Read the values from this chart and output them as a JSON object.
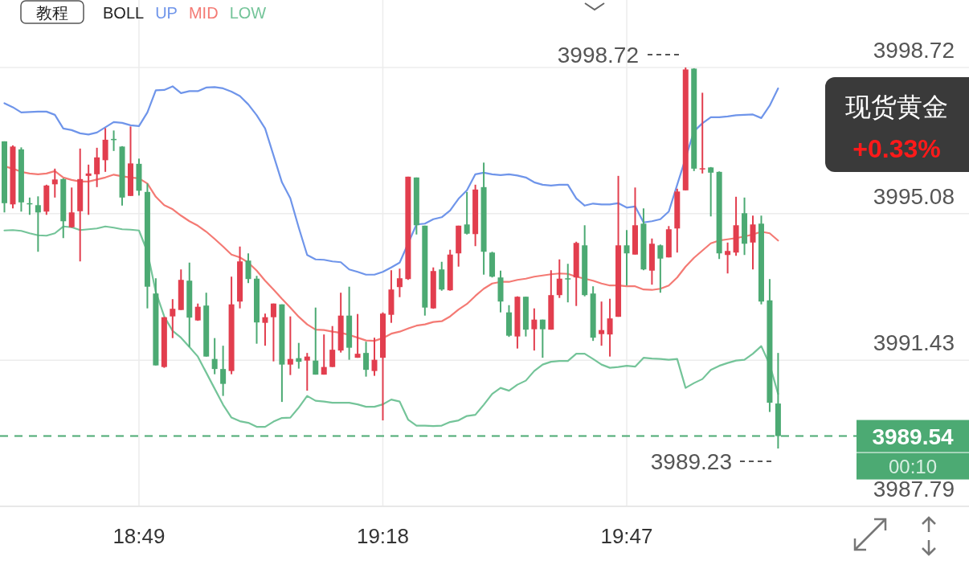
{
  "chart_data": {
    "type": "candlestick",
    "legend_title": "BOLL",
    "legend": "top",
    "grid": true,
    "categories": [
      null,
      null,
      null,
      null,
      null,
      null,
      null,
      null,
      null,
      null,
      null,
      null,
      null,
      null,
      null,
      null,
      "18:49",
      null,
      null,
      null,
      null,
      null,
      null,
      null,
      null,
      null,
      null,
      null,
      null,
      null,
      null,
      null,
      null,
      null,
      null,
      null,
      null,
      null,
      null,
      null,
      null,
      null,
      null,
      null,
      null,
      "19:18",
      null,
      null,
      null,
      null,
      null,
      null,
      null,
      null,
      null,
      null,
      null,
      null,
      null,
      null,
      null,
      null,
      null,
      null,
      null,
      null,
      null,
      null,
      null,
      null,
      null,
      null,
      null,
      null,
      "19:47",
      null,
      null,
      null,
      null,
      null,
      null,
      null,
      null,
      null,
      null,
      null,
      null,
      null,
      null,
      null,
      null,
      null,
      null
    ],
    "ylim": [
      3987.79,
      4000.4
    ],
    "yticks": [
      3998.72,
      3995.08,
      3991.43,
      3987.79
    ],
    "ohlc": [
      [
        3996.88,
        3996.88,
        3995.11,
        3995.34
      ],
      [
        3995.31,
        3996.78,
        3995.21,
        3996.75
      ],
      [
        3996.68,
        3996.73,
        3995.13,
        3995.36
      ],
      [
        3995.34,
        3995.48,
        3995.05,
        3995.31
      ],
      [
        3995.29,
        3995.51,
        3994.13,
        3995.11
      ],
      [
        3995.13,
        3995.8,
        3995.05,
        3995.78
      ],
      [
        3995.81,
        3996.2,
        3995.48,
        3995.93
      ],
      [
        3995.94,
        3995.96,
        3994.47,
        3994.89
      ],
      [
        3994.74,
        3995.73,
        3994.73,
        3995.11
      ],
      [
        3995.14,
        3996.7,
        3993.89,
        3995.94
      ],
      [
        3996.02,
        3996.3,
        3995.05,
        3996.08
      ],
      [
        3996.06,
        3996.72,
        3995.74,
        3996.48
      ],
      [
        3996.41,
        3997.21,
        3996.12,
        3996.92
      ],
      [
        3996.94,
        3997.15,
        3996.64,
        3996.92
      ],
      [
        3996.75,
        3996.76,
        3995.28,
        3995.48
      ],
      [
        3995.52,
        3997.25,
        3995.52,
        3996.33
      ],
      [
        3996.32,
        3996.45,
        3995.53,
        3995.65
      ],
      [
        3995.62,
        3995.83,
        3992.72,
        3993.26
      ],
      [
        3993.09,
        3993.47,
        3991.3,
        3991.3
      ],
      [
        3991.26,
        3992.5,
        3991.24,
        3992.5
      ],
      [
        3992.52,
        3992.95,
        3991.98,
        3992.71
      ],
      [
        3992.68,
        3993.69,
        3992.68,
        3993.43
      ],
      [
        3993.41,
        3993.86,
        3991.76,
        3992.49
      ],
      [
        3992.42,
        3992.84,
        3992.41,
        3992.76
      ],
      [
        3992.79,
        3993.11,
        3991.52,
        3991.52
      ],
      [
        3991.46,
        3991.98,
        3991.08,
        3991.21
      ],
      [
        3991.21,
        3991.79,
        3990.54,
        3990.84
      ],
      [
        3991.16,
        3993.51,
        3991.08,
        3992.82
      ],
      [
        3992.89,
        3994.26,
        3992.72,
        3993.89
      ],
      [
        3993.91,
        3994.09,
        3993.35,
        3993.45
      ],
      [
        3993.46,
        3993.53,
        3991.84,
        3992.37
      ],
      [
        3992.36,
        3992.59,
        3991.79,
        3992.5
      ],
      [
        3992.5,
        3992.84,
        3991.4,
        3992.84
      ],
      [
        3992.82,
        3992.82,
        3990.39,
        3991.32
      ],
      [
        3991.32,
        3992.52,
        3991.06,
        3991.46
      ],
      [
        3991.48,
        3991.86,
        3991.22,
        3991.39
      ],
      [
        3991.42,
        3991.61,
        3990.67,
        3991.52
      ],
      [
        3991.42,
        3992.74,
        3991.07,
        3991.07
      ],
      [
        3991.07,
        3992.07,
        3991.07,
        3991.26
      ],
      [
        3991.26,
        3992.28,
        3991.26,
        3991.69
      ],
      [
        3991.67,
        3993.11,
        3991.62,
        3992.54
      ],
      [
        3992.54,
        3993.26,
        3991.44,
        3991.74
      ],
      [
        3991.49,
        3992.58,
        3991.49,
        3991.59
      ],
      [
        3991.61,
        3991.89,
        3991.02,
        3991.19
      ],
      [
        3991.16,
        3991.99,
        3991.04,
        3991.44
      ],
      [
        3991.49,
        3992.62,
        3989.93,
        3992.59
      ],
      [
        3992.56,
        3993.67,
        3992.36,
        3993.19
      ],
      [
        3993.25,
        3993.71,
        3993.0,
        3993.47
      ],
      [
        3993.45,
        3996.0,
        3993.43,
        3996.0
      ],
      [
        3995.98,
        3995.98,
        3994.56,
        3994.79
      ],
      [
        3994.78,
        3994.78,
        3992.54,
        3992.74
      ],
      [
        3992.72,
        3993.74,
        3992.71,
        3993.65
      ],
      [
        3993.69,
        3993.88,
        3993.16,
        3993.19
      ],
      [
        3993.17,
        3994.18,
        3993.16,
        3994.06
      ],
      [
        3994.09,
        3994.78,
        3993.76,
        3994.78
      ],
      [
        3994.81,
        3995.62,
        3994.56,
        3994.58
      ],
      [
        3994.57,
        3995.8,
        3994.27,
        3995.68
      ],
      [
        3995.74,
        3996.35,
        3993.56,
        3994.13
      ],
      [
        3994.11,
        3994.13,
        3993.49,
        3993.51
      ],
      [
        3993.49,
        3993.66,
        3992.62,
        3992.89
      ],
      [
        3992.62,
        3992.8,
        3992.01,
        3992.04
      ],
      [
        3992.02,
        3993.02,
        3991.72,
        3993.01
      ],
      [
        3993.01,
        3993.01,
        3992.02,
        3992.19
      ],
      [
        3992.2,
        3992.72,
        3991.67,
        3992.44
      ],
      [
        3992.44,
        3992.44,
        3991.49,
        3992.2
      ],
      [
        3992.19,
        3993.67,
        3992.19,
        3993.05
      ],
      [
        3993.05,
        3993.94,
        3992.98,
        3993.46
      ],
      [
        3993.47,
        3993.83,
        3992.87,
        3993.45
      ],
      [
        3993.49,
        3994.38,
        3992.78,
        3994.35
      ],
      [
        3994.29,
        3994.79,
        3993.02,
        3993.05
      ],
      [
        3993.09,
        3993.27,
        3991.91,
        3991.99
      ],
      [
        3992.08,
        3992.89,
        3991.79,
        3992.18
      ],
      [
        3992.07,
        3992.96,
        3991.52,
        3992.47
      ],
      [
        3992.51,
        3996.02,
        3992.51,
        3994.29
      ],
      [
        3994.29,
        3994.67,
        3993.29,
        3994.09
      ],
      [
        3994.06,
        3995.73,
        3994.06,
        3994.79
      ],
      [
        3994.83,
        3995.21,
        3993.67,
        3993.69
      ],
      [
        3993.66,
        3994.46,
        3993.31,
        3994.33
      ],
      [
        3994.29,
        3994.31,
        3993.11,
        3993.96
      ],
      [
        3993.99,
        3994.77,
        3993.99,
        3994.69
      ],
      [
        3994.71,
        3995.7,
        3994.11,
        3995.63
      ],
      [
        3995.66,
        3998.72,
        3995.66,
        3998.67
      ],
      [
        3998.69,
        3998.7,
        3996.14,
        3996.2
      ],
      [
        3996.18,
        3998.09,
        3996.08,
        3996.21
      ],
      [
        3996.23,
        3996.24,
        3995.01,
        3996.1
      ],
      [
        3996.12,
        3996.13,
        3993.95,
        3994.09
      ],
      [
        3994.05,
        3994.36,
        3993.59,
        3994.15
      ],
      [
        3994.11,
        3995.5,
        3994.03,
        3994.79
      ],
      [
        3995.09,
        3995.48,
        3994.05,
        3994.33
      ],
      [
        3994.36,
        3995.03,
        3993.69,
        3994.81
      ],
      [
        3994.83,
        3995.03,
        3992.82,
        3992.89
      ],
      [
        3992.92,
        3993.45,
        3990.14,
        3990.37
      ],
      [
        3990.35,
        3991.61,
        3989.23,
        3989.54
      ]
    ],
    "colors": [
      "#4caa73",
      "#e23e4e",
      "#4caa73",
      "#4caa73",
      "#4caa73",
      "#e23e4e",
      "#e23e4e",
      "#4caa73",
      "#e23e4e",
      "#e23e4e",
      "#e23e4e",
      "#e23e4e",
      "#e23e4e",
      "#4caa73",
      "#4caa73",
      "#e23e4e",
      "#4caa73",
      "#4caa73",
      "#4caa73",
      "#e23e4e",
      "#e23e4e",
      "#e23e4e",
      "#4caa73",
      "#e23e4e",
      "#4caa73",
      "#4caa73",
      "#4caa73",
      "#e23e4e",
      "#e23e4e",
      "#4caa73",
      "#4caa73",
      "#e23e4e",
      "#e23e4e",
      "#4caa73",
      "#e23e4e",
      "#4caa73",
      "#e23e4e",
      "#4caa73",
      "#e23e4e",
      "#e23e4e",
      "#e23e4e",
      "#4caa73",
      "#e23e4e",
      "#4caa73",
      "#e23e4e",
      "#e23e4e",
      "#e23e4e",
      "#e23e4e",
      "#e23e4e",
      "#4caa73",
      "#4caa73",
      "#e23e4e",
      "#4caa73",
      "#e23e4e",
      "#e23e4e",
      "#4caa73",
      "#e23e4e",
      "#4caa73",
      "#4caa73",
      "#4caa73",
      "#4caa73",
      "#e23e4e",
      "#4caa73",
      "#e23e4e",
      "#4caa73",
      "#e23e4e",
      "#e23e4e",
      "#4caa73",
      "#e23e4e",
      "#4caa73",
      "#4caa73",
      "#e23e4e",
      "#e23e4e",
      "#e23e4e",
      "#4caa73",
      "#e23e4e",
      "#4caa73",
      "#e23e4e",
      "#4caa73",
      "#e23e4e",
      "#e23e4e",
      "#e23e4e",
      "#4caa73",
      "#e23e4e",
      "#4caa73",
      "#4caa73",
      "#e23e4e",
      "#e23e4e",
      "#4caa73",
      "#e23e4e",
      "#4caa73",
      "#4caa73",
      "#4caa73"
    ],
    "series": [
      {
        "name": "UP",
        "type": "line",
        "color": "#6f95ea",
        "values": [
          3997.83,
          3997.73,
          3997.6,
          3997.61,
          3997.62,
          3997.62,
          3997.54,
          3997.2,
          3997.16,
          3997.08,
          3997.05,
          3997.1,
          3997.23,
          3997.36,
          3997.34,
          3997.28,
          3997.26,
          3997.6,
          3998.15,
          3998.16,
          3998.25,
          3998.08,
          3998.13,
          3998.13,
          3998.22,
          3998.23,
          3998.2,
          3998.12,
          3998.01,
          3997.8,
          3997.53,
          3997.2,
          3996.53,
          3995.86,
          3995.46,
          3994.73,
          3994.05,
          3993.94,
          3993.93,
          3993.89,
          3993.87,
          3993.69,
          3993.63,
          3993.56,
          3993.56,
          3993.63,
          3993.74,
          3993.86,
          null,
          3994.81,
          3994.83,
          3994.94,
          3994.99,
          3995.16,
          3995.45,
          3995.66,
          3996.06,
          3996.1,
          3996.06,
          3996.04,
          3996.06,
          3996.03,
          3995.98,
          3995.86,
          3995.8,
          3995.78,
          3995.8,
          3995.8,
          3995.46,
          3995.28,
          3995.33,
          3995.31,
          3995.31,
          3995.34,
          3995.23,
          3995.26,
          3994.86,
          3994.89,
          3994.94,
          3995.13,
          null,
          null,
          3997.13,
          3997.33,
          3997.48,
          3997.48,
          3997.5,
          3997.53,
          3997.54,
          3997.55,
          3997.46,
          3997.77,
          3998.2
        ]
      },
      {
        "name": "MID",
        "type": "line",
        "color": "#f47a74",
        "values": [
          3996.26,
          3996.2,
          3996.12,
          3996.08,
          3996.06,
          3996.08,
          3996.14,
          3995.98,
          3995.92,
          3995.88,
          3995.88,
          3995.93,
          3995.98,
          3996.05,
          3996.01,
          3995.98,
          3995.96,
          3995.83,
          3995.5,
          3995.29,
          3995.19,
          3995.03,
          3994.89,
          3994.78,
          3994.63,
          3994.45,
          3994.26,
          3994.06,
          3993.99,
          3993.86,
          3993.66,
          3993.41,
          3993.19,
          3992.96,
          3992.74,
          3992.51,
          3992.32,
          3992.19,
          3992.18,
          3992.14,
          3992.11,
          3992.06,
          3991.99,
          3991.92,
          3991.91,
          3991.98,
          3992.09,
          3992.14,
          3992.22,
          3992.29,
          3992.32,
          3992.38,
          3992.4,
          3992.52,
          3992.69,
          3992.83,
          3993.03,
          3993.21,
          3993.34,
          3993.38,
          3993.38,
          3993.43,
          3993.46,
          3993.51,
          3993.54,
          3993.57,
          3993.59,
          3993.58,
          3993.51,
          3993.46,
          3993.41,
          3993.34,
          3993.29,
          3993.29,
          3993.27,
          3993.27,
          3993.19,
          3993.18,
          3993.21,
          3993.29,
          3993.49,
          3993.76,
          3993.98,
          3994.16,
          3994.34,
          3994.41,
          3994.44,
          3994.47,
          3994.51,
          3994.56,
          3994.63,
          3994.59,
          3994.41
        ]
      },
      {
        "name": "LOW",
        "type": "line",
        "color": "#74c499",
        "values": [
          3994.66,
          3994.67,
          3994.65,
          3994.59,
          3994.54,
          3994.53,
          3994.59,
          3994.76,
          3994.74,
          3994.67,
          3994.69,
          3994.71,
          3994.76,
          3994.73,
          3994.69,
          3994.68,
          3994.66,
          3994.13,
          3993.13,
          3992.52,
          3992.16,
          3991.99,
          3991.76,
          3991.52,
          3991.12,
          3990.72,
          3990.32,
          3990.0,
          3989.91,
          3989.87,
          3989.77,
          3989.77,
          3989.9,
          3989.99,
          3990.0,
          3990.25,
          3990.54,
          3990.42,
          3990.4,
          3990.37,
          3990.37,
          3990.37,
          3990.33,
          3990.27,
          3990.27,
          3990.33,
          3990.45,
          3990.4,
          3989.95,
          3989.8,
          3989.8,
          3989.79,
          3989.8,
          3989.89,
          3989.93,
          3990.04,
          3990.07,
          3990.32,
          3990.59,
          3990.74,
          3990.67,
          3990.82,
          3990.92,
          3991.16,
          3991.32,
          3991.39,
          3991.41,
          3991.41,
          3991.59,
          3991.59,
          3991.46,
          3991.32,
          3991.24,
          3991.26,
          3991.29,
          3991.27,
          3991.49,
          3991.47,
          3991.46,
          3991.44,
          3991.46,
          3990.74,
          3990.86,
          3990.96,
          3991.19,
          3991.29,
          3991.36,
          3991.42,
          3991.44,
          3991.59,
          3991.78,
          3991.32,
          3990.59
        ]
      }
    ],
    "ref_lines": [
      {
        "axis": "y",
        "value": 3989.54,
        "label": "3989.54",
        "color": "#4caa73",
        "line_style": "dashed"
      }
    ],
    "annotations": [
      "教程",
      "现货黄金",
      "+0.33%",
      "00:10",
      "3998.72",
      "3989.23"
    ]
  }
}
